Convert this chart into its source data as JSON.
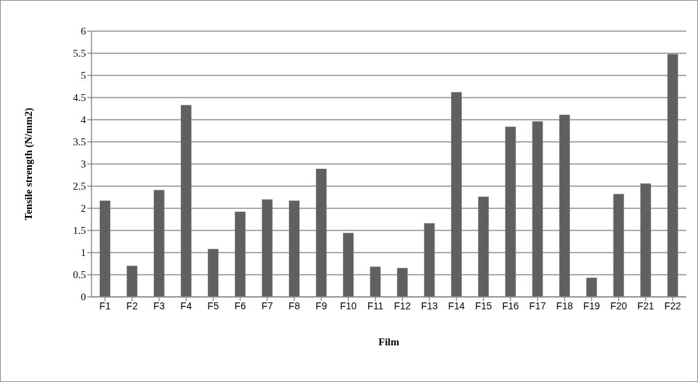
{
  "chart_data": {
    "type": "bar",
    "xlabel": "Film",
    "ylabel": "Tensile strength (N/mm2)",
    "categories": [
      "F1",
      "F2",
      "F3",
      "F4",
      "F5",
      "F6",
      "F7",
      "F8",
      "F9",
      "F10",
      "F11",
      "F12",
      "F13",
      "F14",
      "F15",
      "F16",
      "F17",
      "F18",
      "F19",
      "F20",
      "F21",
      "F22"
    ],
    "values": [
      2.17,
      0.7,
      2.41,
      4.33,
      1.08,
      1.92,
      2.2,
      2.17,
      2.89,
      1.44,
      0.68,
      0.65,
      1.66,
      4.62,
      2.26,
      3.84,
      3.96,
      4.11,
      0.43,
      2.32,
      2.56,
      5.48
    ],
    "color": "#606060",
    "ylim": [
      0,
      6
    ],
    "yticks": [
      0,
      0.5,
      1,
      1.5,
      2,
      2.5,
      3,
      3.5,
      4,
      4.5,
      5,
      5.5,
      6
    ],
    "grid": "y",
    "legend": false
  }
}
